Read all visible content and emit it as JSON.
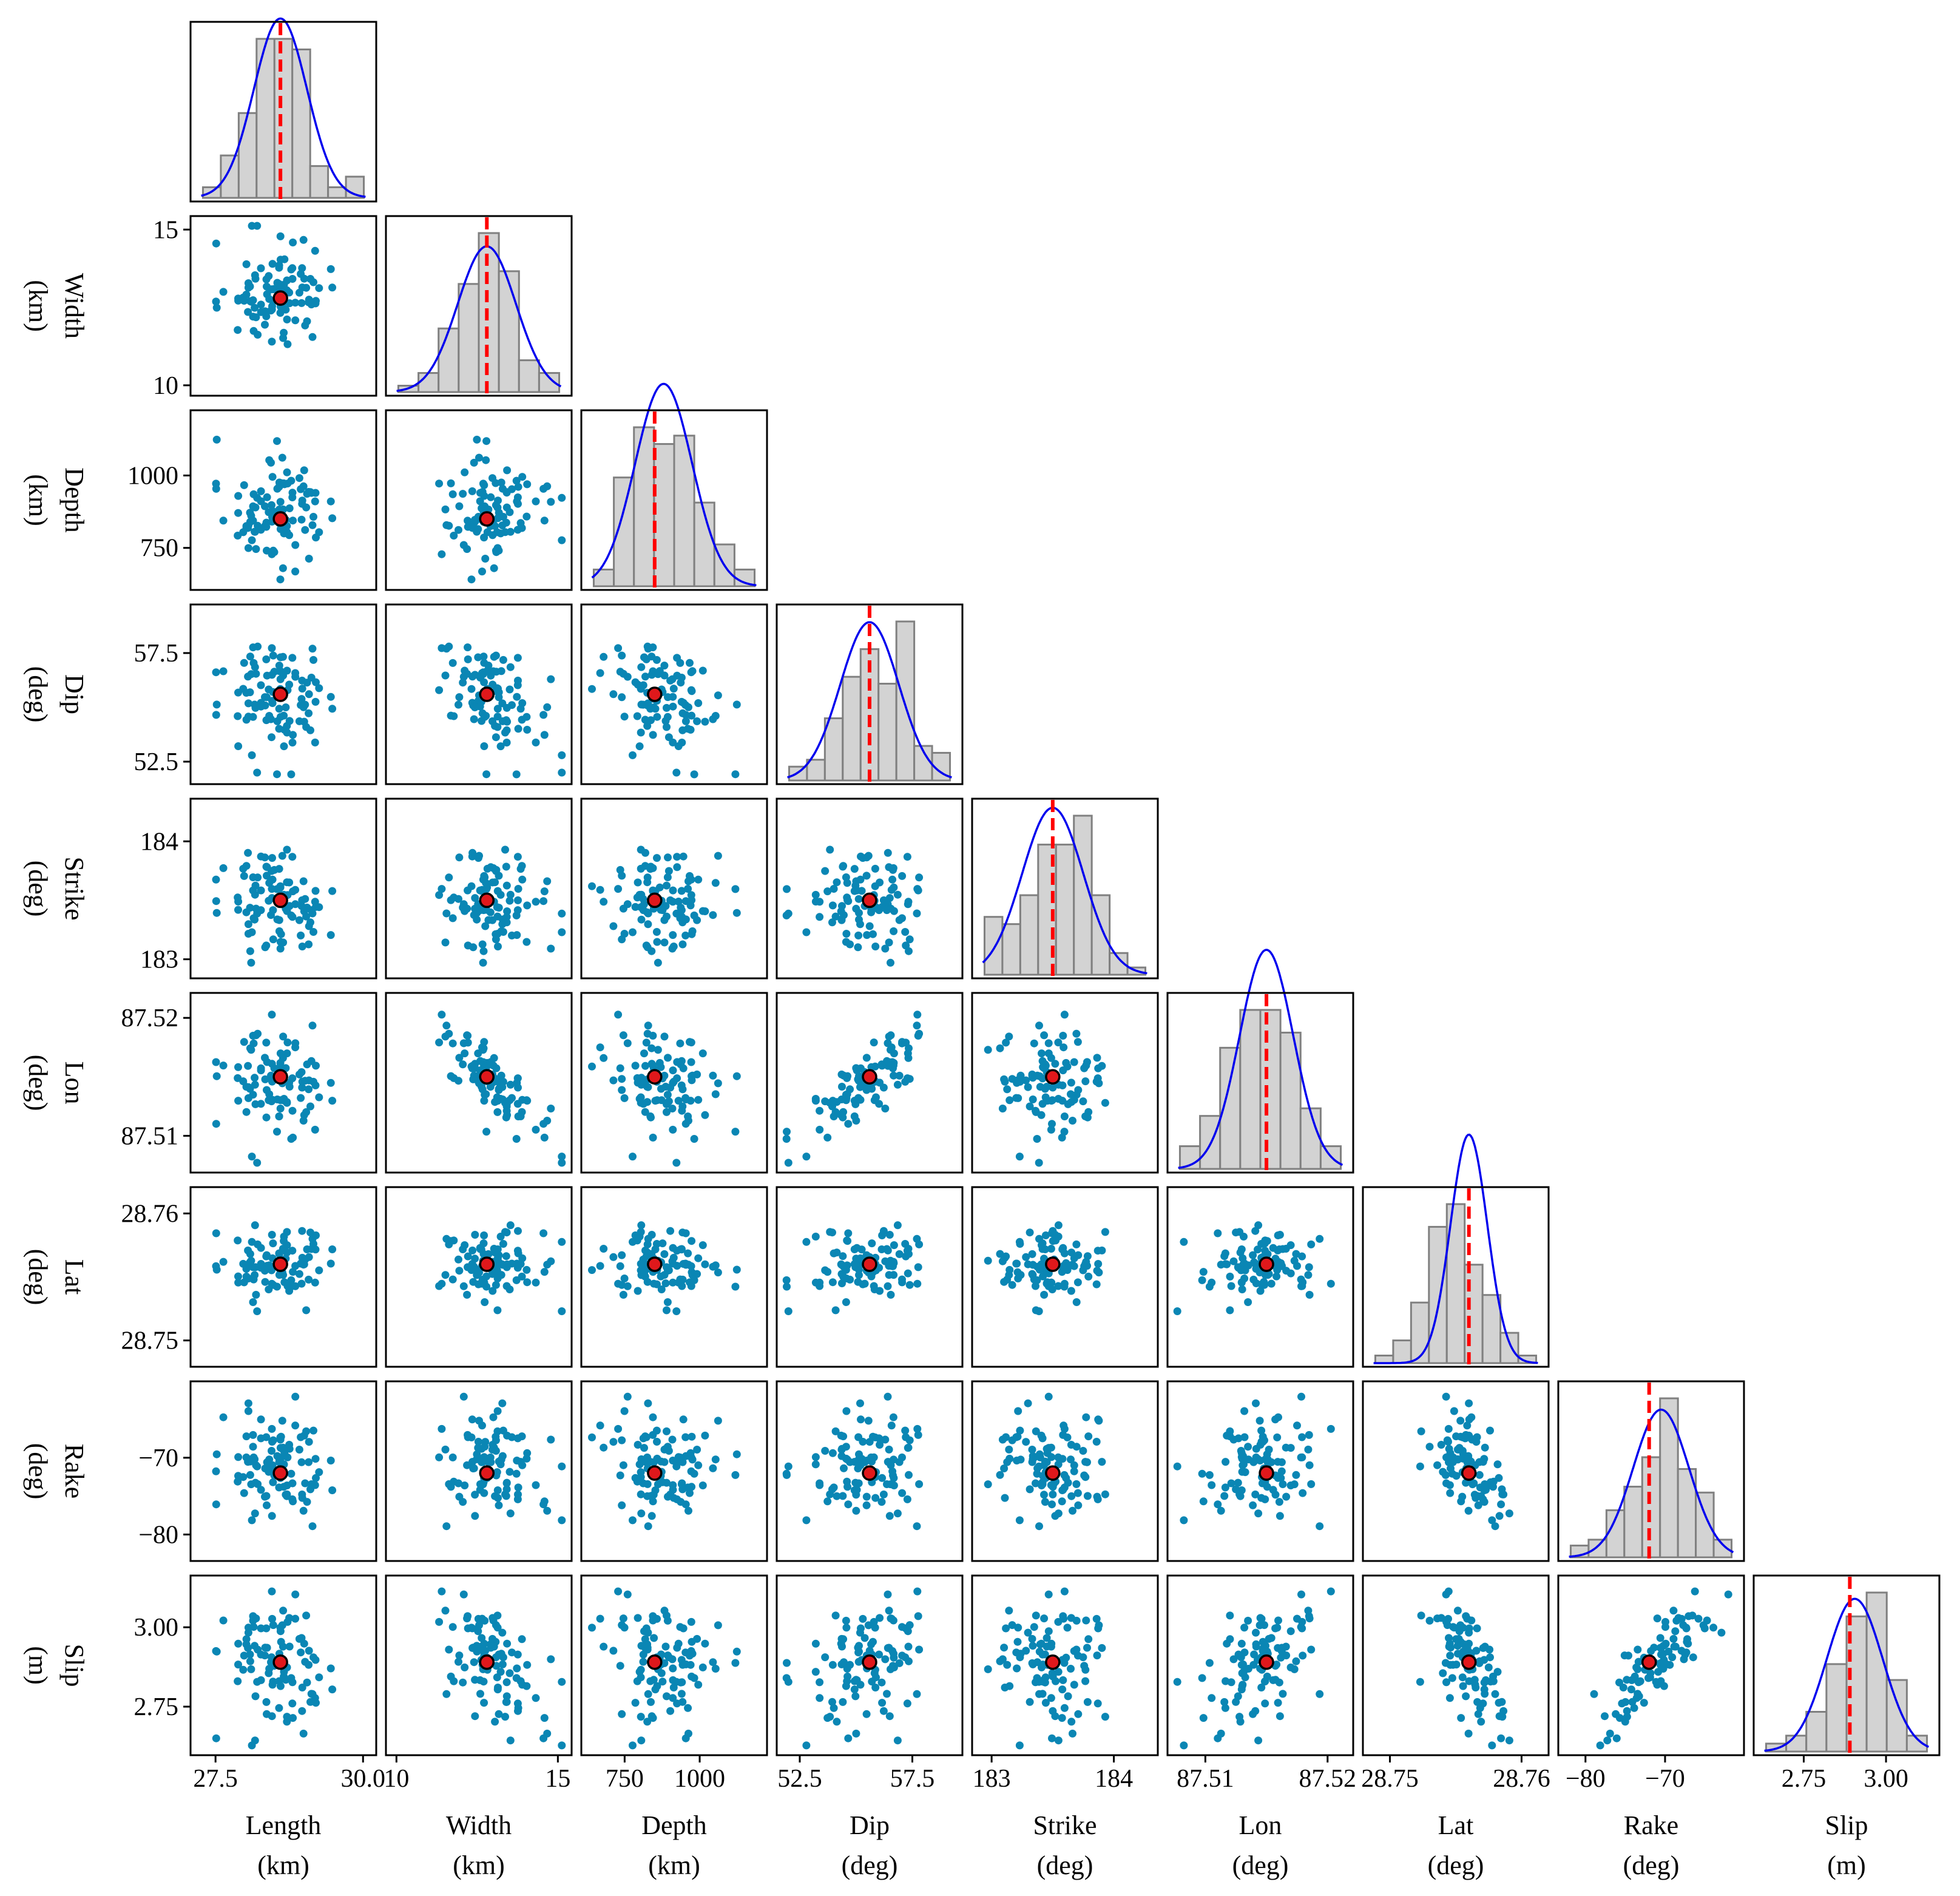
{
  "chart_data": {
    "type": "scatter",
    "title": "",
    "description_kind": "corner plot",
    "parameters": [
      {
        "key": "Length",
        "name": "Length",
        "unit": "(km)",
        "range": [
          27.2,
          30.1
        ],
        "ticks": [
          27.5,
          30.0
        ],
        "tick_labels": [
          "27.5",
          "30.0"
        ],
        "truth": 28.6,
        "mean": 28.6,
        "sd": 0.45,
        "hist": [
          1,
          4,
          8,
          15,
          15,
          14,
          3,
          1,
          2
        ]
      },
      {
        "key": "Width",
        "name": "Width",
        "unit": "(km)",
        "range": [
          9.9,
          15.2
        ],
        "ticks": [
          10.0,
          15.0
        ],
        "tick_labels": [
          "10",
          "15"
        ],
        "truth": 12.8,
        "mean": 12.8,
        "sd": 0.9,
        "hist": [
          1,
          3,
          10,
          17,
          25,
          19,
          5,
          3
        ]
      },
      {
        "key": "Depth",
        "name": "Depth",
        "unit": "(km)",
        "range": [
          630,
          1200
        ],
        "ticks": [
          750,
          1000
        ],
        "tick_labels": [
          "750",
          "1000"
        ],
        "truth": 850,
        "mean": 880,
        "sd": 95,
        "hist": [
          2,
          13,
          19,
          17,
          18,
          10,
          5,
          2
        ]
      },
      {
        "key": "Dip",
        "name": "Dip",
        "unit": "(deg)",
        "range": [
          51.8,
          59.4
        ],
        "ticks": [
          52.5,
          57.5
        ],
        "tick_labels": [
          "52.5",
          "57.5"
        ],
        "truth": 55.6,
        "mean": 55.6,
        "sd": 1.3,
        "hist": [
          2,
          3,
          9,
          15,
          19,
          14,
          23,
          5,
          4
        ]
      },
      {
        "key": "Strike",
        "name": "Strike",
        "unit": "(deg)",
        "range": [
          182.9,
          184.3
        ],
        "ticks": [
          183.0,
          184.0
        ],
        "tick_labels": [
          "183",
          "184"
        ],
        "truth": 183.5,
        "mean": 183.5,
        "sd": 0.25,
        "hist": [
          8,
          7,
          11,
          18,
          18,
          22,
          11,
          3,
          1
        ]
      },
      {
        "key": "Lon",
        "name": "Lon",
        "unit": "(deg)",
        "range": [
          87.5075,
          87.5215
        ],
        "ticks": [
          87.51,
          87.52
        ],
        "tick_labels": [
          "87.51",
          "87.52"
        ],
        "truth": 87.515,
        "mean": 87.515,
        "sd": 0.0022,
        "hist": [
          3,
          7,
          16,
          21,
          21,
          18,
          8,
          3
        ]
      },
      {
        "key": "Lat",
        "name": "Lat",
        "unit": "(deg)",
        "range": [
          28.7485,
          28.7615
        ],
        "ticks": [
          28.75,
          28.76
        ],
        "tick_labels": [
          "28.75",
          "28.76"
        ],
        "truth": 28.756,
        "mean": 28.756,
        "sd": 0.0014,
        "hist": [
          1,
          3,
          8,
          18,
          21,
          13,
          9,
          4,
          1
        ]
      },
      {
        "key": "Rake",
        "name": "Rake",
        "unit": "(deg)",
        "range": [
          -82.5,
          -61.0
        ],
        "ticks": [
          -80.0,
          -70.0
        ],
        "tick_labels": [
          "−80",
          "−70"
        ],
        "truth": -72.0,
        "mean": -70.5,
        "sd": 3.5,
        "hist": [
          2,
          3,
          8,
          12,
          17,
          27,
          15,
          11,
          3
        ]
      },
      {
        "key": "Slip",
        "name": "Slip",
        "unit": "(m)",
        "range": [
          2.62,
          3.14
        ],
        "ticks": [
          2.75,
          3.0
        ],
        "tick_labels": [
          "2.75",
          "3.00"
        ],
        "truth": 2.89,
        "mean": 2.905,
        "sd": 0.085,
        "hist": [
          1,
          2,
          5,
          11,
          17,
          20,
          9,
          2
        ]
      }
    ],
    "correlations": {
      "Width|Lon": -0.9,
      "Dip|Lon": 0.8,
      "Rake|Slip": 0.85,
      "Lat|Rake": -0.45,
      "Lat|Slip": -0.4,
      "Width|Slip": -0.35,
      "Length|Strike": -0.3,
      "Lon|Slip": 0.3,
      "Width|Dip": -0.35,
      "Depth|Dip": -0.3,
      "Width|Depth": -0.1,
      "Lon|Rake": 0.2
    },
    "n_samples": 100,
    "series": [
      {
        "name": "posterior samples",
        "color": "#0a86b4"
      },
      {
        "name": "true / reference value",
        "color": "#e0181b"
      },
      {
        "name": "histogram",
        "color": "#d3d3d3"
      },
      {
        "name": "fitted normal density",
        "color": "#0000ee"
      },
      {
        "name": "reference value line",
        "color": "#ff0000"
      }
    ],
    "xlabel": "",
    "ylabel": "",
    "grid": false,
    "legend": "none"
  }
}
